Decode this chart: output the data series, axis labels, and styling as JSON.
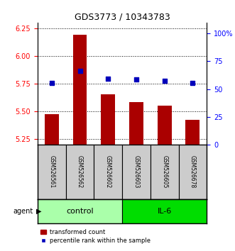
{
  "title": "GDS3773 / 10343783",
  "samples": [
    "GSM526561",
    "GSM526562",
    "GSM526602",
    "GSM526603",
    "GSM526605",
    "GSM526678"
  ],
  "red_values": [
    5.47,
    6.19,
    5.65,
    5.58,
    5.55,
    5.42
  ],
  "blue_values": [
    5.755,
    5.865,
    5.79,
    5.785,
    5.775,
    5.755
  ],
  "ylim_left": [
    5.2,
    6.3
  ],
  "yticks_left": [
    5.25,
    5.5,
    5.75,
    6.0,
    6.25
  ],
  "ylim_right": [
    0,
    110
  ],
  "yticks_right": [
    0,
    25,
    50,
    75,
    100
  ],
  "yright_labels": [
    "0",
    "25",
    "50",
    "75",
    "100%"
  ],
  "groups": [
    {
      "label": "control",
      "indices": [
        0,
        1,
        2
      ],
      "color": "#aaffaa"
    },
    {
      "label": "IL-6",
      "indices": [
        3,
        4,
        5
      ],
      "color": "#00dd00"
    }
  ],
  "agent_label": "agent",
  "legend_red": "transformed count",
  "legend_blue": "percentile rank within the sample",
  "bar_color": "#aa0000",
  "dot_color": "#0000bb",
  "bar_bottom": 5.2,
  "bar_width": 0.5,
  "sample_box_color": "#cccccc",
  "title_fontsize": 9,
  "tick_fontsize": 7,
  "sample_fontsize": 5.5,
  "group_fontsize": 8,
  "legend_fontsize": 6
}
